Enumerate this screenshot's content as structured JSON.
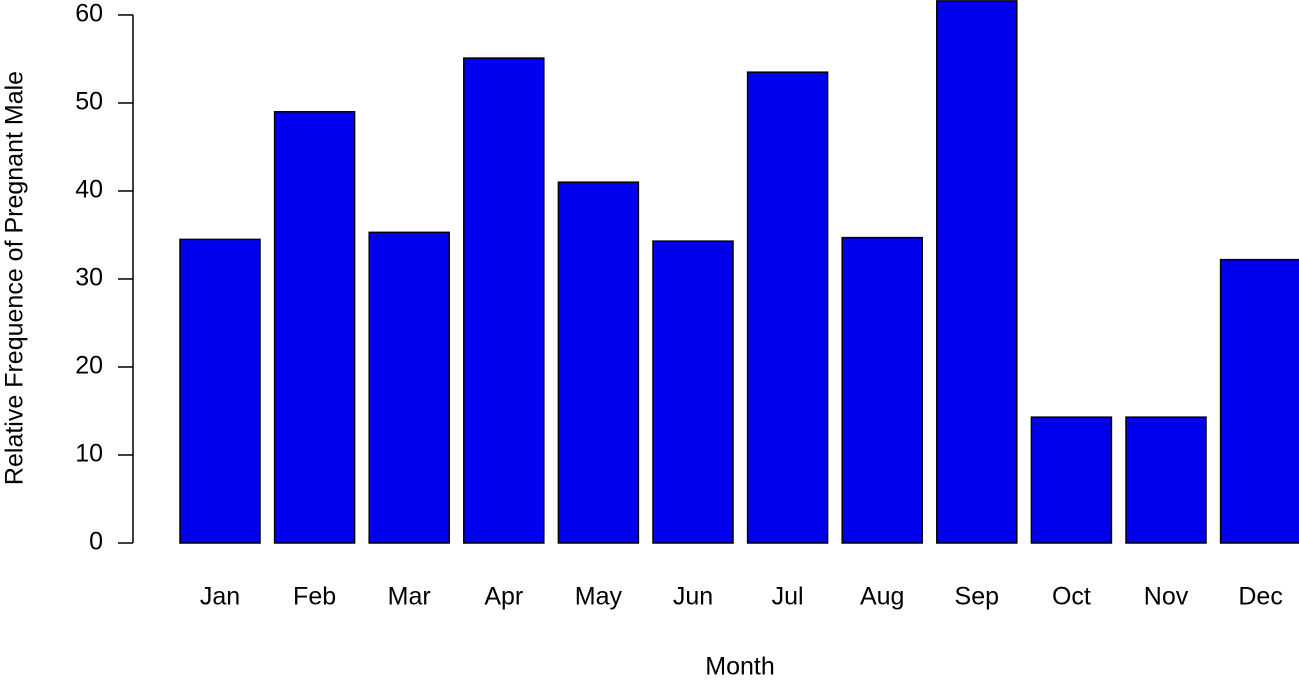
{
  "chart_data": {
    "type": "bar",
    "x_label": "Month",
    "y_label": "Relative Frequence of Pregnant Male",
    "categories": [
      "Jan",
      "Feb",
      "Mar",
      "Apr",
      "May",
      "Jun",
      "Jul",
      "Aug",
      "Sep",
      "Oct",
      "Nov",
      "Dec"
    ],
    "values": [
      34.5,
      49.0,
      35.3,
      55.1,
      41.0,
      34.3,
      53.5,
      34.7,
      61.6,
      14.3,
      14.3,
      32.2
    ],
    "color": "#0000ee",
    "ylim": [
      0,
      61.7
    ],
    "yticks": [
      0,
      10,
      20,
      30,
      40,
      50,
      60
    ],
    "grid": false
  }
}
